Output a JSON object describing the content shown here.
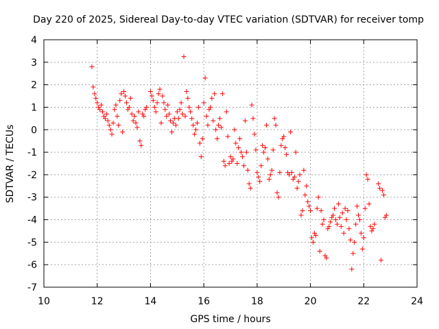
{
  "chart_data": {
    "type": "scatter",
    "title": "Day 220 of 2025, Sidereal Day-to-day VTEC variation (SDTVAR) for receiver tomp",
    "xlabel": "GPS time / hours",
    "ylabel": "SDTVAR / TECUs",
    "xlim": [
      10,
      24
    ],
    "ylim": [
      -7,
      4
    ],
    "xticks": [
      "10",
      "12",
      "14",
      "16",
      "18",
      "20",
      "22",
      "24"
    ],
    "yticks": [
      "4",
      "3",
      "2",
      "1",
      "0",
      "-1",
      "-2",
      "-3",
      "-4",
      "-5",
      "-6",
      "-7"
    ],
    "marker": "+",
    "color": "#ff0000",
    "grid": true,
    "series": [
      {
        "name": "SDTVAR",
        "points": [
          [
            11.8,
            2.8
          ],
          [
            11.85,
            1.9
          ],
          [
            11.9,
            1.6
          ],
          [
            11.95,
            1.4
          ],
          [
            12.0,
            1.2
          ],
          [
            12.05,
            1.0
          ],
          [
            12.1,
            0.9
          ],
          [
            12.15,
            1.1
          ],
          [
            12.2,
            0.8
          ],
          [
            12.25,
            0.6
          ],
          [
            12.3,
            0.5
          ],
          [
            12.35,
            0.7
          ],
          [
            12.4,
            0.4
          ],
          [
            12.45,
            0.2
          ],
          [
            12.5,
            0.0
          ],
          [
            12.55,
            -0.2
          ],
          [
            12.6,
            0.3
          ],
          [
            12.65,
            0.9
          ],
          [
            12.7,
            1.1
          ],
          [
            12.75,
            0.6
          ],
          [
            12.8,
            0.2
          ],
          [
            12.85,
            1.3
          ],
          [
            12.9,
            1.6
          ],
          [
            12.95,
            -0.1
          ],
          [
            13.0,
            1.7
          ],
          [
            13.05,
            1.5
          ],
          [
            13.1,
            1.2
          ],
          [
            13.15,
            0.9
          ],
          [
            13.2,
            1.0
          ],
          [
            13.25,
            1.4
          ],
          [
            13.3,
            0.7
          ],
          [
            13.35,
            0.4
          ],
          [
            13.4,
            0.6
          ],
          [
            13.45,
            0.3
          ],
          [
            13.5,
            0.1
          ],
          [
            13.55,
            0.8
          ],
          [
            13.6,
            -0.5
          ],
          [
            13.65,
            -0.7
          ],
          [
            13.7,
            0.7
          ],
          [
            13.75,
            0.6
          ],
          [
            13.8,
            0.9
          ],
          [
            13.85,
            1.0
          ],
          [
            14.0,
            1.7
          ],
          [
            14.05,
            1.5
          ],
          [
            14.1,
            1.3
          ],
          [
            14.15,
            1.0
          ],
          [
            14.2,
            0.8
          ],
          [
            14.25,
            1.2
          ],
          [
            14.3,
            1.6
          ],
          [
            14.35,
            1.8
          ],
          [
            14.4,
            0.3
          ],
          [
            14.45,
            1.5
          ],
          [
            14.5,
            1.2
          ],
          [
            14.55,
            0.9
          ],
          [
            14.6,
            0.6
          ],
          [
            14.65,
            1.1
          ],
          [
            14.7,
            0.7
          ],
          [
            14.75,
            0.4
          ],
          [
            14.8,
            -0.1
          ],
          [
            14.85,
            0.3
          ],
          [
            14.9,
            0.5
          ],
          [
            14.95,
            0.2
          ],
          [
            15.0,
            0.8
          ],
          [
            15.05,
            0.5
          ],
          [
            15.1,
            0.9
          ],
          [
            15.15,
            1.2
          ],
          [
            15.2,
            0.7
          ],
          [
            15.25,
            3.25
          ],
          [
            15.3,
            0.6
          ],
          [
            15.35,
            1.7
          ],
          [
            15.4,
            1.4
          ],
          [
            15.45,
            1.0
          ],
          [
            15.5,
            0.8
          ],
          [
            15.55,
            0.5
          ],
          [
            15.6,
            0.2
          ],
          [
            15.65,
            -0.2
          ],
          [
            15.7,
            0.0
          ],
          [
            15.75,
            0.3
          ],
          [
            15.8,
            1.0
          ],
          [
            15.85,
            -0.6
          ],
          [
            15.9,
            -1.2
          ],
          [
            15.95,
            -0.4
          ],
          [
            16.0,
            1.2
          ],
          [
            16.05,
            2.3
          ],
          [
            16.1,
            0.6
          ],
          [
            16.15,
            0.2
          ],
          [
            16.2,
            0.9
          ],
          [
            16.25,
            1.0
          ],
          [
            16.3,
            1.4
          ],
          [
            16.35,
            0.4
          ],
          [
            16.4,
            1.6
          ],
          [
            16.45,
            0.0
          ],
          [
            16.5,
            -0.4
          ],
          [
            16.55,
            0.2
          ],
          [
            16.6,
            0.5
          ],
          [
            16.65,
            0.1
          ],
          [
            16.7,
            1.6
          ],
          [
            16.75,
            -1.4
          ],
          [
            16.8,
            -1.6
          ],
          [
            16.85,
            0.8
          ],
          [
            16.9,
            -0.3
          ],
          [
            16.95,
            -1.5
          ],
          [
            17.0,
            -1.2
          ],
          [
            17.05,
            -1.4
          ],
          [
            17.1,
            -1.3
          ],
          [
            17.15,
            0.0
          ],
          [
            17.2,
            -0.6
          ],
          [
            17.25,
            -1.5
          ],
          [
            17.3,
            -0.8
          ],
          [
            17.35,
            -0.4
          ],
          [
            17.4,
            -1.0
          ],
          [
            17.45,
            -1.2
          ],
          [
            17.5,
            -1.6
          ],
          [
            17.55,
            0.4
          ],
          [
            17.6,
            -1.0
          ],
          [
            17.65,
            -1.8
          ],
          [
            17.7,
            -2.4
          ],
          [
            17.75,
            -2.6
          ],
          [
            17.8,
            1.1
          ],
          [
            17.85,
            0.5
          ],
          [
            17.9,
            -0.2
          ],
          [
            17.95,
            -0.9
          ],
          [
            18.0,
            -1.9
          ],
          [
            18.05,
            -2.1
          ],
          [
            18.1,
            -2.3
          ],
          [
            18.15,
            -1.6
          ],
          [
            18.2,
            -0.7
          ],
          [
            18.25,
            -1.0
          ],
          [
            18.3,
            -0.8
          ],
          [
            18.35,
            0.2
          ],
          [
            18.4,
            -1.3
          ],
          [
            18.45,
            -2.2
          ],
          [
            18.5,
            -2.0
          ],
          [
            18.55,
            -1.8
          ],
          [
            18.6,
            -0.9
          ],
          [
            18.65,
            0.5
          ],
          [
            18.7,
            0.2
          ],
          [
            18.75,
            -2.8
          ],
          [
            18.8,
            -3.0
          ],
          [
            18.85,
            -1.9
          ],
          [
            18.9,
            -0.7
          ],
          [
            18.95,
            -0.4
          ],
          [
            19.0,
            -0.3
          ],
          [
            19.05,
            -0.8
          ],
          [
            19.1,
            -1.1
          ],
          [
            19.15,
            -1.9
          ],
          [
            19.2,
            -2.0
          ],
          [
            19.25,
            -0.1
          ],
          [
            19.3,
            -1.9
          ],
          [
            19.35,
            -2.2
          ],
          [
            19.4,
            -2.1
          ],
          [
            19.45,
            -1.0
          ],
          [
            19.5,
            -2.6
          ],
          [
            19.55,
            -2.3
          ],
          [
            19.6,
            -2.0
          ],
          [
            19.65,
            -3.8
          ],
          [
            19.7,
            -3.6
          ],
          [
            19.75,
            -1.8
          ],
          [
            19.8,
            -2.9
          ],
          [
            19.85,
            -2.5
          ],
          [
            19.9,
            -3.2
          ],
          [
            19.95,
            -3.4
          ],
          [
            20.0,
            -3.6
          ],
          [
            20.05,
            -4.8
          ],
          [
            20.1,
            -5.0
          ],
          [
            20.15,
            -4.6
          ],
          [
            20.2,
            -4.7
          ],
          [
            20.25,
            -3.5
          ],
          [
            20.3,
            -3.0
          ],
          [
            20.35,
            -5.4
          ],
          [
            20.4,
            -3.6
          ],
          [
            20.45,
            -4.2
          ],
          [
            20.5,
            -4.0
          ],
          [
            20.55,
            -5.6
          ],
          [
            20.6,
            -5.7
          ],
          [
            20.65,
            -4.4
          ],
          [
            20.7,
            -4.3
          ],
          [
            20.75,
            -4.1
          ],
          [
            20.8,
            -3.9
          ],
          [
            20.85,
            -3.8
          ],
          [
            20.9,
            -3.5
          ],
          [
            20.95,
            -4.0
          ],
          [
            21.0,
            -4.2
          ],
          [
            21.05,
            -3.3
          ],
          [
            21.1,
            -3.9
          ],
          [
            21.15,
            -4.3
          ],
          [
            21.2,
            -3.7
          ],
          [
            21.25,
            -4.6
          ],
          [
            21.3,
            -3.5
          ],
          [
            21.35,
            -4.0
          ],
          [
            21.4,
            -3.6
          ],
          [
            21.45,
            -4.4
          ],
          [
            21.5,
            -4.9
          ],
          [
            21.55,
            -6.2
          ],
          [
            21.6,
            -5.5
          ],
          [
            21.65,
            -5.0
          ],
          [
            21.7,
            -4.2
          ],
          [
            21.75,
            -3.4
          ],
          [
            21.8,
            -3.8
          ],
          [
            21.85,
            -4.0
          ],
          [
            21.9,
            -4.6
          ],
          [
            21.95,
            -5.3
          ],
          [
            22.0,
            -4.8
          ],
          [
            22.05,
            -3.5
          ],
          [
            22.1,
            -2.0
          ],
          [
            22.15,
            -2.2
          ],
          [
            22.2,
            -3.3
          ],
          [
            22.25,
            -4.3
          ],
          [
            22.3,
            -4.5
          ],
          [
            22.35,
            -4.4
          ],
          [
            22.4,
            -4.2
          ],
          [
            22.55,
            -2.4
          ],
          [
            22.6,
            -2.6
          ],
          [
            22.65,
            -5.8
          ],
          [
            22.7,
            -2.7
          ],
          [
            22.75,
            -2.9
          ],
          [
            22.8,
            -3.9
          ],
          [
            22.85,
            -3.8
          ]
        ]
      }
    ]
  }
}
